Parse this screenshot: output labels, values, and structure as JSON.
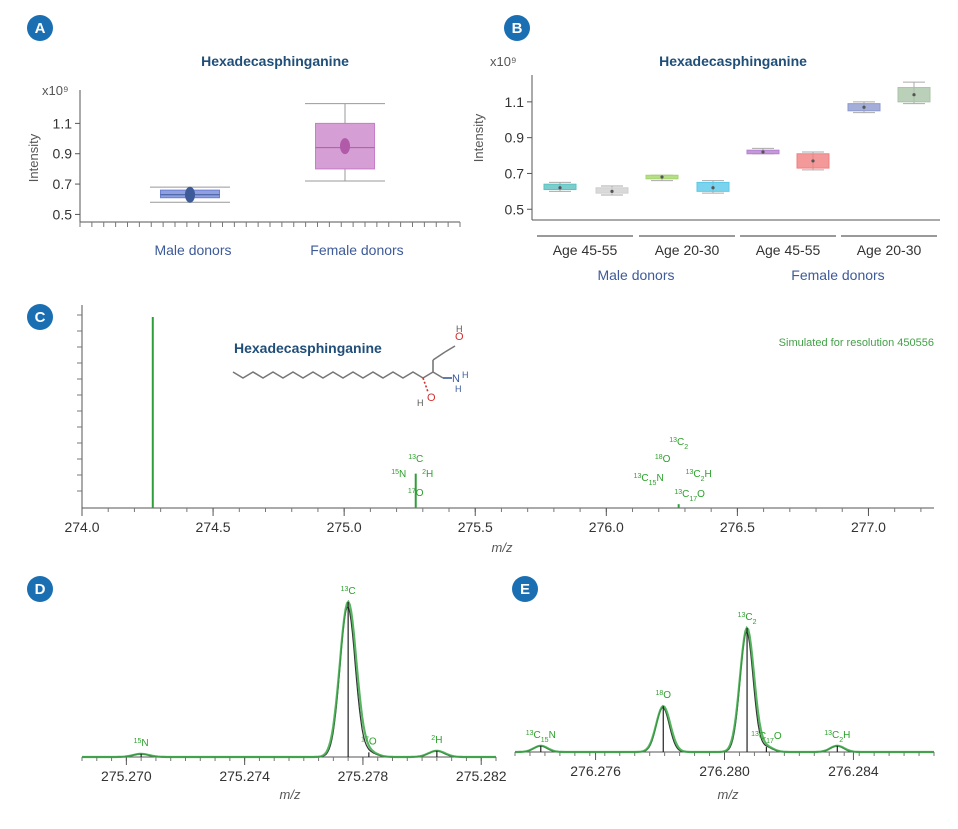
{
  "colors": {
    "badge": "#1a6fb3",
    "title": "#1f4e79",
    "male": "#3d5a99",
    "female": "#b05aa8",
    "spectrum": "#2e9d3a",
    "axis": "#555555"
  },
  "chart_data": [
    {
      "panel": "A",
      "type": "box",
      "title": "Hexadecasphinganine",
      "ylabel": "Intensity",
      "yexponent": "x10⁹",
      "ylim": [
        0.45,
        1.32
      ],
      "yticks": [
        "0.5",
        "0.7",
        "0.9",
        "1.1"
      ],
      "categories": [
        "Male donors",
        "Female donors"
      ],
      "boxes": [
        {
          "name": "Male donors",
          "min": 0.58,
          "q1": 0.61,
          "median": 0.63,
          "q3": 0.66,
          "max": 0.68,
          "mean": 0.63,
          "color": "#6b7fd4",
          "text_color": "#3d5a99"
        },
        {
          "name": "Female donors",
          "min": 0.72,
          "q1": 0.8,
          "median": 0.94,
          "q3": 1.1,
          "max": 1.23,
          "mean": 0.95,
          "color": "#c77dc7",
          "text_color": "#b05aa8"
        }
      ]
    },
    {
      "panel": "B",
      "type": "box",
      "title": "Hexadecasphinganine",
      "ylabel": "Intensity",
      "yexponent": "x10⁹",
      "ylim": [
        0.44,
        1.25
      ],
      "yticks": [
        "0.5",
        "0.7",
        "0.9",
        "1.1"
      ],
      "groups": [
        {
          "name": "Male donors",
          "text_color": "#3d5a99",
          "subgroups": [
            "Age 45-55",
            "Age 20-30"
          ]
        },
        {
          "name": "Female donors",
          "text_color": "#b05aa8",
          "subgroups": [
            "Age 45-55",
            "Age 20-30"
          ]
        }
      ],
      "boxes": [
        {
          "min": 0.6,
          "q1": 0.61,
          "median": 0.62,
          "q3": 0.64,
          "max": 0.65,
          "color": "#5bc2c2"
        },
        {
          "min": 0.58,
          "q1": 0.59,
          "median": 0.6,
          "q3": 0.62,
          "max": 0.63,
          "color": "#cfcfcf"
        },
        {
          "min": 0.66,
          "q1": 0.67,
          "median": 0.68,
          "q3": 0.69,
          "max": 0.69,
          "color": "#a4d66b"
        },
        {
          "min": 0.59,
          "q1": 0.6,
          "median": 0.62,
          "q3": 0.65,
          "max": 0.66,
          "color": "#5bc8e8"
        },
        {
          "min": 0.81,
          "q1": 0.81,
          "median": 0.82,
          "q3": 0.83,
          "max": 0.84,
          "color": "#b57fcf"
        },
        {
          "min": 0.72,
          "q1": 0.73,
          "median": 0.77,
          "q3": 0.81,
          "max": 0.82,
          "color": "#f08080"
        },
        {
          "min": 1.04,
          "q1": 1.05,
          "median": 1.07,
          "q3": 1.09,
          "max": 1.1,
          "color": "#8d9ad0"
        },
        {
          "min": 1.09,
          "q1": 1.1,
          "median": 1.14,
          "q3": 1.18,
          "max": 1.21,
          "color": "#aac4a6"
        }
      ]
    },
    {
      "panel": "C",
      "type": "line",
      "title": "Hexadecasphinganine",
      "note": "Simulated for resolution 450556",
      "xlabel": "m/z",
      "xlim": [
        274.0,
        277.25
      ],
      "xticks": [
        "274.0",
        "274.5",
        "275.0",
        "275.5",
        "276.0",
        "276.5",
        "277.0"
      ],
      "peaks": [
        {
          "x": 274.27,
          "y": 1.0
        },
        {
          "x": 275.273,
          "y": 0.18
        },
        {
          "x": 276.276,
          "y": 0.02
        }
      ],
      "labels_275": [
        "13C",
        "15N",
        "2H",
        "17O"
      ],
      "labels_276": [
        "13C2",
        "18O",
        "13C15N",
        "13C2H",
        "13C17O"
      ]
    },
    {
      "panel": "D",
      "type": "line",
      "xlabel": "m/z",
      "xlim": [
        275.2685,
        275.2825
      ],
      "xticks": [
        "275.270",
        "275.274",
        "275.278",
        "275.282"
      ],
      "peaks": [
        {
          "label": "15N",
          "x": 275.2705,
          "y": 0.02
        },
        {
          "label": "13C",
          "x": 275.2775,
          "y": 1.0
        },
        {
          "label": "17O",
          "x": 275.2782,
          "y": 0.03
        },
        {
          "label": "2H",
          "x": 275.2805,
          "y": 0.04
        }
      ]
    },
    {
      "panel": "E",
      "type": "line",
      "xlabel": "m/z",
      "xlim": [
        276.2735,
        276.2865
      ],
      "xticks": [
        "276.276",
        "276.280",
        "276.284"
      ],
      "peaks": [
        {
          "label": "13C15N",
          "x": 276.2743,
          "y": 0.05
        },
        {
          "label": "18O",
          "x": 276.2781,
          "y": 0.37
        },
        {
          "label": "13C2",
          "x": 276.2807,
          "y": 1.0
        },
        {
          "label": "13C17O",
          "x": 276.2813,
          "y": 0.04
        },
        {
          "label": "13C2H",
          "x": 276.2835,
          "y": 0.05
        }
      ]
    }
  ]
}
